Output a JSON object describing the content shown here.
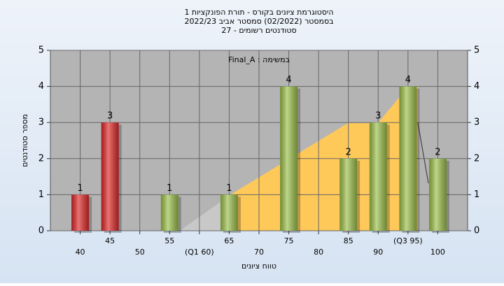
{
  "chart_data": {
    "type": "bar",
    "title_lines": [
      "היסטוגרמת ציונים בקורס - תורת הפונקציות 1",
      "בסמסטר  (02/2022)  סמסטר אביב 2022/23",
      "סטודנטים רשומים - 27"
    ],
    "annotation": "Final_A : במשימה",
    "xlabel": "טווח ציונים",
    "ylabel": "מספר סטודנטים",
    "x": [
      40,
      45,
      55,
      65,
      75,
      85,
      90,
      95,
      100
    ],
    "values": [
      1,
      3,
      1,
      1,
      4,
      2,
      3,
      4,
      2
    ],
    "colors": [
      "#e02828",
      "#e02828",
      "#9cc04a",
      "#9cc04a",
      "#9cc04a",
      "#9cc04a",
      "#9cc04a",
      "#9cc04a",
      "#9cc04a"
    ],
    "xlim": [
      35,
      105
    ],
    "xticks": [
      40,
      45,
      50,
      55,
      {
        "value": 60,
        "label": "(Q1 60)"
      },
      65,
      70,
      75,
      80,
      85,
      90,
      {
        "value": 95,
        "label": "(Q3 95)"
      },
      100
    ],
    "ylim": [
      0,
      5
    ],
    "yticks": [
      0,
      1,
      2,
      3,
      4,
      5
    ],
    "y2lim": [
      0,
      5
    ],
    "y2ticks": [
      0,
      1,
      2,
      3,
      4,
      5
    ],
    "grid": true
  }
}
